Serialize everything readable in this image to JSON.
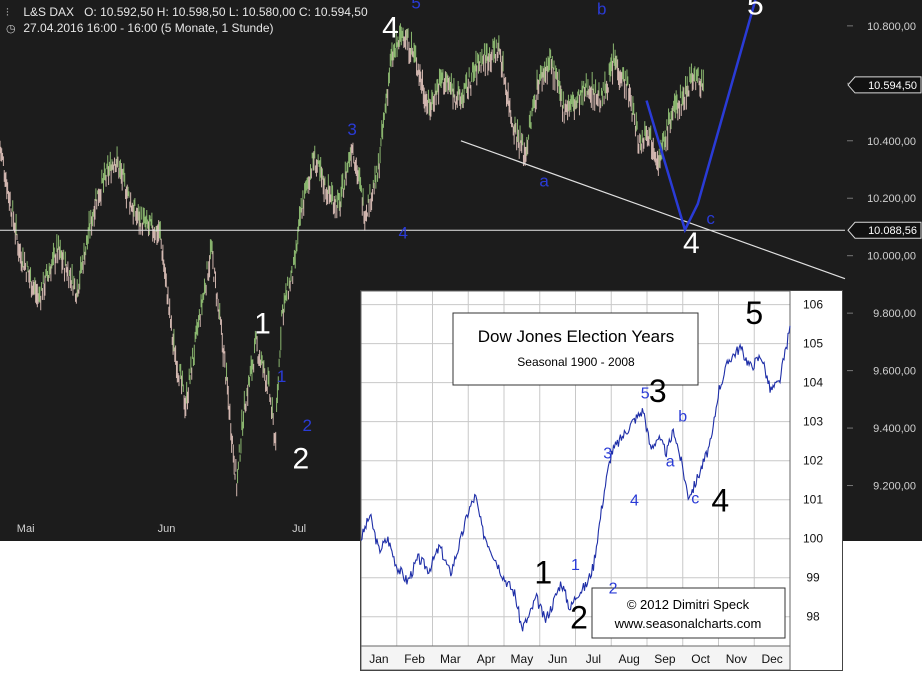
{
  "header": {
    "symbol": "L&S DAX",
    "ohlc": "O: 10.592,50   H: 10.598,50   L: 10.580,00   C: 10.594,50",
    "timeframe": "27.04.2016 16:00 - 16:00 (5 Monate, 1 Stunde)",
    "symbol_icon": "bar-chart-icon",
    "time_icon": "clock-icon"
  },
  "colors": {
    "panel_bg": "#1c1c1c",
    "bull": "#9ed27e",
    "bear": "#f0d0c8",
    "wave_blue": "#2a3bd6",
    "wave_white": "#ffffff",
    "inset_line": "#1f2fa8",
    "inset_grid": "#c8c8c8"
  },
  "chart_data": [
    {
      "type": "line",
      "name": "dax",
      "title": "L&S DAX",
      "yticks": [
        "10.800,00",
        "10.600,00",
        "10.400,00",
        "10.200,00",
        "10.000,00",
        "9.800,00",
        "9.600,00",
        "9.400,00",
        "9.200,00"
      ],
      "ytick_values": [
        10800,
        10600,
        10400,
        10200,
        10000,
        9800,
        9600,
        9400,
        9200
      ],
      "ylim": [
        9080,
        10890
      ],
      "xticks": [
        "Mai",
        "Jun",
        "Jul"
      ],
      "xtick_pos": [
        2,
        24,
        45
      ],
      "x_range": [
        0,
        132
      ],
      "price_tags": [
        {
          "label": "10.594,50",
          "value": 10594.5
        },
        {
          "label": "10.088,56",
          "value": 10088.56
        }
      ],
      "horizontal_line": 10088.56,
      "x": [
        0,
        3,
        6,
        9,
        12,
        15,
        18,
        21,
        23,
        25,
        27,
        29,
        31,
        33,
        35,
        37,
        38,
        40,
        42,
        43,
        44,
        46,
        47,
        49,
        51,
        53,
        55,
        57,
        59,
        61,
        63,
        65,
        67,
        69,
        72,
        75,
        78,
        80,
        82,
        84,
        86,
        88,
        90,
        92,
        94,
        96,
        98,
        100,
        101,
        103,
        105,
        107,
        108,
        110
      ],
      "y": [
        10380,
        10020,
        9850,
        10020,
        9880,
        10200,
        10340,
        10150,
        10100,
        10080,
        9700,
        9480,
        9760,
        10020,
        9650,
        9200,
        9450,
        9690,
        9540,
        9350,
        9800,
        9960,
        10150,
        10340,
        10230,
        10170,
        10390,
        10150,
        10280,
        10670,
        10780,
        10680,
        10510,
        10620,
        10540,
        10680,
        10720,
        10470,
        10350,
        10600,
        10680,
        10520,
        10530,
        10590,
        10540,
        10680,
        10590,
        10380,
        10450,
        10330,
        10500,
        10560,
        10630,
        10594.5
      ],
      "wave_labels": [
        {
          "text": "1",
          "x": 41,
          "y": 9730,
          "color": "white"
        },
        {
          "text": "2",
          "x": 47,
          "y": 9260,
          "color": "white"
        },
        {
          "text": "4",
          "x": 61,
          "y": 10760,
          "color": "white"
        },
        {
          "text": "4",
          "x": 108,
          "y": 10010,
          "color": "white"
        },
        {
          "text": "5",
          "x": 118,
          "y": 10840,
          "color": "white"
        },
        {
          "text": "1",
          "x": 44,
          "y": 9560,
          "color": "blue"
        },
        {
          "text": "2",
          "x": 48,
          "y": 9390,
          "color": "blue"
        },
        {
          "text": "3",
          "x": 55,
          "y": 10420,
          "color": "blue"
        },
        {
          "text": "4",
          "x": 63,
          "y": 10060,
          "color": "blue"
        },
        {
          "text": "5",
          "x": 65,
          "y": 10860,
          "color": "blue"
        },
        {
          "text": "a",
          "x": 85,
          "y": 10240,
          "color": "blue"
        },
        {
          "text": "b",
          "x": 94,
          "y": 10840,
          "color": "blue"
        },
        {
          "text": "c",
          "x": 111,
          "y": 10110,
          "color": "blue"
        }
      ],
      "trendline": [
        [
          72,
          10400
        ],
        [
          132,
          9920
        ]
      ],
      "projection": [
        [
          101,
          10540
        ],
        [
          107,
          10090
        ],
        [
          109,
          10180
        ],
        [
          118,
          10890
        ]
      ]
    },
    {
      "type": "line",
      "name": "inset",
      "title": "Dow Jones Election Years",
      "subtitle": "Seasonal 1900 - 2008",
      "copyright": "© 2012  Dimitri Speck",
      "website": "www.seasonalcharts.com",
      "categories": [
        "Jan",
        "Feb",
        "Mar",
        "Apr",
        "May",
        "Jun",
        "Jul",
        "Aug",
        "Sep",
        "Oct",
        "Nov",
        "Dec"
      ],
      "yticks": [
        "106",
        "105",
        "104",
        "103",
        "102",
        "101",
        "100",
        "99",
        "98"
      ],
      "ytick_values": [
        106,
        105,
        104,
        103,
        102,
        101,
        100,
        99,
        98
      ],
      "ylim": [
        97.25,
        106.35
      ],
      "xlim": [
        0,
        12
      ],
      "x": [
        0,
        0.25,
        0.5,
        0.75,
        1.0,
        1.3,
        1.6,
        1.9,
        2.2,
        2.5,
        2.8,
        3.0,
        3.2,
        3.4,
        3.7,
        4.0,
        4.3,
        4.5,
        4.7,
        4.9,
        5.15,
        5.35,
        5.6,
        5.85,
        6.05,
        6.3,
        6.5,
        6.8,
        7.0,
        7.3,
        7.6,
        7.9,
        8.1,
        8.3,
        8.55,
        8.75,
        9.0,
        9.15,
        9.3,
        9.6,
        9.8,
        10.0,
        10.3,
        10.6,
        10.9,
        11.2,
        11.45,
        11.7,
        12.0
      ],
      "y": [
        100.0,
        100.6,
        99.7,
        100.0,
        99.3,
        98.9,
        99.5,
        99.2,
        99.8,
        99.1,
        100.0,
        100.7,
        101.1,
        100.2,
        99.6,
        99.0,
        98.6,
        97.7,
        98.0,
        98.5,
        97.9,
        98.3,
        98.9,
        98.2,
        98.6,
        98.8,
        99.3,
        101.2,
        102.2,
        102.6,
        103.0,
        103.3,
        102.3,
        102.6,
        102.2,
        102.8,
        101.8,
        101.1,
        101.3,
        102.0,
        102.5,
        103.8,
        104.6,
        104.9,
        104.4,
        104.7,
        103.8,
        104.0,
        105.4
      ],
      "wave_labels": [
        {
          "text": "1",
          "x": 5.1,
          "y": 98.85,
          "color": "black"
        },
        {
          "text": "2",
          "x": 6.1,
          "y": 97.7,
          "color": "black"
        },
        {
          "text": "3",
          "x": 8.3,
          "y": 103.5,
          "color": "black"
        },
        {
          "text": "4",
          "x": 10.05,
          "y": 100.7,
          "color": "black"
        },
        {
          "text": "5",
          "x": 11.0,
          "y": 105.5,
          "color": "black"
        },
        {
          "text": "1",
          "x": 6.0,
          "y": 99.2,
          "color": "blue"
        },
        {
          "text": "2",
          "x": 7.05,
          "y": 98.6,
          "color": "blue"
        },
        {
          "text": "3",
          "x": 6.9,
          "y": 102.05,
          "color": "blue"
        },
        {
          "text": "4",
          "x": 7.65,
          "y": 100.85,
          "color": "blue"
        },
        {
          "text": "5",
          "x": 7.95,
          "y": 103.6,
          "color": "blue"
        },
        {
          "text": "a",
          "x": 8.65,
          "y": 101.85,
          "color": "blue"
        },
        {
          "text": "b",
          "x": 9.0,
          "y": 103.0,
          "color": "blue"
        },
        {
          "text": "c",
          "x": 9.35,
          "y": 100.9,
          "color": "blue"
        }
      ]
    }
  ]
}
